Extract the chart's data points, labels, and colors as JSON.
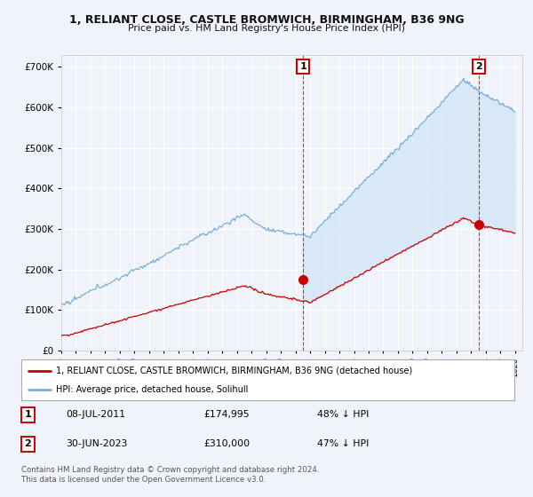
{
  "title_line1": "1, RELIANT CLOSE, CASTLE BROMWICH, BIRMINGHAM, B36 9NG",
  "title_line2": "Price paid vs. HM Land Registry's House Price Index (HPI)",
  "hpi_color": "#7ab0d8",
  "price_color": "#cc0000",
  "fill_color": "#d0e4f5",
  "background_color": "#f0f4fa",
  "plot_bg_color": "#f0f4fa",
  "grid_color": "#dddddd",
  "ylim": [
    0,
    730000
  ],
  "yticks": [
    0,
    100000,
    200000,
    300000,
    400000,
    500000,
    600000,
    700000
  ],
  "ytick_labels": [
    "£0",
    "£100K",
    "£200K",
    "£300K",
    "£400K",
    "£500K",
    "£600K",
    "£700K"
  ],
  "legend_label_red": "1, RELIANT CLOSE, CASTLE BROMWICH, BIRMINGHAM, B36 9NG (detached house)",
  "legend_label_blue": "HPI: Average price, detached house, Solihull",
  "annotation1_date": "08-JUL-2011",
  "annotation1_price": "£174,995",
  "annotation1_note": "48% ↓ HPI",
  "annotation2_date": "30-JUN-2023",
  "annotation2_price": "£310,000",
  "annotation2_note": "47% ↓ HPI",
  "footer1": "Contains HM Land Registry data © Crown copyright and database right 2024.",
  "footer2": "This data is licensed under the Open Government Licence v3.0.",
  "marker1_x": 2011.52,
  "marker1_y": 174995,
  "marker2_x": 2023.5,
  "marker2_y": 310000,
  "vline1_x": 2011.52,
  "vline2_x": 2023.5,
  "xmin": 1995.0,
  "xmax": 2026.5
}
